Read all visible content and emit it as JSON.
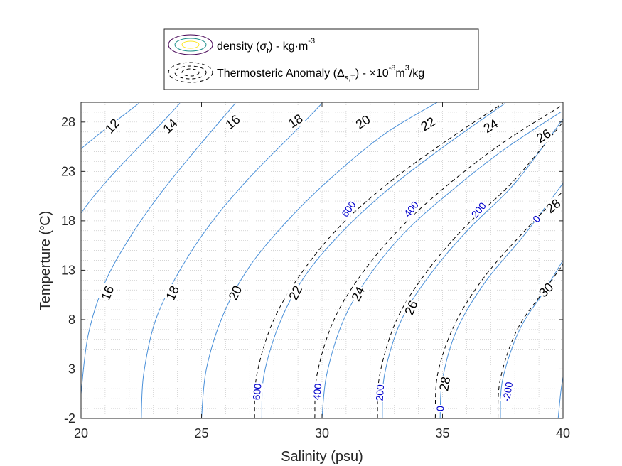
{
  "chart_data": {
    "type": "line",
    "title": "",
    "xlabel": "Salinity (psu)",
    "ylabel_main": "Temperture (",
    "ylabel_sup": "o",
    "ylabel_end": "C)",
    "xlim": [
      20,
      40
    ],
    "ylim": [
      -2,
      30
    ],
    "xticks": [
      "20",
      "25",
      "30",
      "35",
      "40"
    ],
    "yticks": [
      "-2",
      "3",
      "8",
      "13",
      "18",
      "23",
      "28"
    ],
    "grid": "on (minor dotted)",
    "legend_placement": "top, outside plot",
    "legend": {
      "density_label": "density (",
      "density_symbol": "σ",
      "density_sub": "t",
      "density_unit": ") - kg·m",
      "density_sup": "-3",
      "anomaly_label": "Thermosteric Anomaly (",
      "anomaly_symbol": "Δ",
      "anomaly_sub": "s,T",
      "anomaly_unit": ") - ×10",
      "anomaly_sup": "-8",
      "anomaly_unit_end": "m",
      "anomaly_sup2": "3",
      "anomaly_unit_tail": "/kg"
    },
    "colors": {
      "density_line": "#4a90d9",
      "anomaly_line": "#000000",
      "anomaly_label": "#0000cc",
      "grid": "#c8c8c8"
    },
    "density_contours": [
      {
        "level": 12,
        "label": "12",
        "points": [
          [
            20,
            25.3
          ],
          [
            20.7,
            26.7
          ],
          [
            21.5,
            28.2
          ],
          [
            22.4,
            29.9
          ]
        ]
      },
      {
        "level": 14,
        "label": "14",
        "points": [
          [
            20,
            18.8
          ],
          [
            20.6,
            20.7
          ],
          [
            21.5,
            23.2
          ],
          [
            22.6,
            26.0
          ],
          [
            23.5,
            28.3
          ],
          [
            24.1,
            29.9
          ]
        ]
      },
      {
        "level": 16,
        "label": "16",
        "points": [
          [
            20,
            0.5
          ],
          [
            20.3,
            6.5
          ],
          [
            21.0,
            11.8
          ],
          [
            22.1,
            16.6
          ],
          [
            23.4,
            21.1
          ],
          [
            24.9,
            25.6
          ],
          [
            26.4,
            29.9
          ]
        ]
      },
      {
        "level": 18,
        "label": "18",
        "points": [
          [
            22.5,
            -2
          ],
          [
            22.6,
            2.5
          ],
          [
            23.1,
            8.0
          ],
          [
            24.1,
            13.0
          ],
          [
            25.4,
            17.8
          ],
          [
            27.0,
            22.4
          ],
          [
            28.9,
            27.1
          ],
          [
            30.0,
            29.9
          ]
        ]
      },
      {
        "level": 20,
        "label": "20",
        "points": [
          [
            25.0,
            -2
          ],
          [
            25.2,
            3.0
          ],
          [
            25.9,
            8.5
          ],
          [
            27.0,
            13.4
          ],
          [
            28.6,
            18.1
          ],
          [
            30.4,
            22.4
          ],
          [
            32.6,
            26.8
          ],
          [
            35.0,
            30.3
          ]
        ]
      },
      {
        "level": 22,
        "label": "22",
        "points": [
          [
            27.5,
            -2
          ],
          [
            27.6,
            2.5
          ],
          [
            28.3,
            8.0
          ],
          [
            29.4,
            12.8
          ],
          [
            31.0,
            17.3
          ],
          [
            32.9,
            21.5
          ],
          [
            35.1,
            25.6
          ],
          [
            37.6,
            29.9
          ]
        ]
      },
      {
        "level": 24,
        "label": "24",
        "points": [
          [
            30.0,
            -2
          ],
          [
            30.2,
            2.5
          ],
          [
            30.9,
            8.0
          ],
          [
            32.0,
            12.6
          ],
          [
            33.5,
            17.0
          ],
          [
            35.4,
            21.1
          ],
          [
            37.6,
            25.3
          ],
          [
            39.9,
            29.0
          ]
        ]
      },
      {
        "level": 26,
        "label": "26",
        "points": [
          [
            32.5,
            -2
          ],
          [
            32.6,
            2.5
          ],
          [
            33.3,
            8.0
          ],
          [
            34.5,
            12.6
          ],
          [
            36.1,
            17.2
          ],
          [
            38.0,
            21.8
          ],
          [
            40.0,
            28.3
          ]
        ]
      },
      {
        "level": 28,
        "label": "28",
        "points": [
          [
            34.9,
            -2
          ],
          [
            35.0,
            2.0
          ],
          [
            35.6,
            7.0
          ],
          [
            36.8,
            11.9
          ],
          [
            38.4,
            16.6
          ],
          [
            40.0,
            21.8
          ]
        ]
      },
      {
        "level": 30,
        "label": "30",
        "points": [
          [
            37.4,
            -2
          ],
          [
            37.5,
            2.0
          ],
          [
            38.2,
            7.0
          ],
          [
            39.2,
            10.8
          ],
          [
            40.0,
            14.0
          ]
        ]
      },
      {
        "level": 32,
        "label": "",
        "points": [
          [
            39.8,
            -2
          ],
          [
            39.9,
            0.5
          ],
          [
            40.0,
            2.2
          ]
        ]
      }
    ],
    "anomaly_contours": [
      {
        "level": 600,
        "label": "600",
        "points": [
          [
            27.2,
            -2
          ],
          [
            27.3,
            2.5
          ],
          [
            28.0,
            8.0
          ],
          [
            29.2,
            12.9
          ],
          [
            30.8,
            17.6
          ],
          [
            32.8,
            21.9
          ],
          [
            35.1,
            26.0
          ],
          [
            37.5,
            29.9
          ]
        ]
      },
      {
        "level": 400,
        "label": "400",
        "points": [
          [
            29.7,
            -2
          ],
          [
            29.8,
            2.5
          ],
          [
            30.5,
            8.0
          ],
          [
            31.7,
            12.8
          ],
          [
            33.3,
            17.4
          ],
          [
            35.2,
            21.6
          ],
          [
            37.5,
            25.9
          ],
          [
            39.9,
            29.6
          ]
        ]
      },
      {
        "level": 200,
        "label": "200",
        "points": [
          [
            32.3,
            -2
          ],
          [
            32.4,
            2.5
          ],
          [
            33.1,
            8.0
          ],
          [
            34.3,
            12.7
          ],
          [
            35.9,
            17.3
          ],
          [
            37.9,
            21.9
          ],
          [
            40.0,
            28.0
          ]
        ]
      },
      {
        "level": 0,
        "label": "0",
        "points": [
          [
            34.7,
            -2
          ],
          [
            34.8,
            2.5
          ],
          [
            35.5,
            7.5
          ],
          [
            36.7,
            12.2
          ],
          [
            38.3,
            16.7
          ],
          [
            40.0,
            21.0
          ]
        ]
      },
      {
        "level": -200,
        "label": "-200",
        "points": [
          [
            37.3,
            -2
          ],
          [
            37.4,
            2.0
          ],
          [
            38.1,
            7.0
          ],
          [
            39.3,
            11.2
          ],
          [
            40.0,
            13.6
          ]
        ]
      }
    ],
    "density_labels": [
      {
        "text": "12",
        "x": 21.3,
        "y": 27.6,
        "angle": -48
      },
      {
        "text": "14",
        "x": 23.7,
        "y": 27.6,
        "angle": -45
      },
      {
        "text": "16",
        "x": 26.3,
        "y": 28.0,
        "angle": -38
      },
      {
        "text": "18",
        "x": 28.9,
        "y": 28.1,
        "angle": -33
      },
      {
        "text": "20",
        "x": 31.7,
        "y": 28.0,
        "angle": -33
      },
      {
        "text": "22",
        "x": 34.4,
        "y": 27.8,
        "angle": -32
      },
      {
        "text": "24",
        "x": 37.0,
        "y": 27.6,
        "angle": -32
      },
      {
        "text": "26",
        "x": 39.2,
        "y": 26.6,
        "angle": -32
      },
      {
        "text": "28",
        "x": 39.6,
        "y": 19.5,
        "angle": -38
      },
      {
        "text": "16",
        "x": 21.1,
        "y": 10.7,
        "angle": -68
      },
      {
        "text": "18",
        "x": 23.8,
        "y": 10.7,
        "angle": -66
      },
      {
        "text": "20",
        "x": 26.4,
        "y": 10.7,
        "angle": -64
      },
      {
        "text": "22",
        "x": 28.9,
        "y": 10.7,
        "angle": -64
      },
      {
        "text": "24",
        "x": 31.5,
        "y": 10.6,
        "angle": -64
      },
      {
        "text": "26",
        "x": 33.7,
        "y": 9.2,
        "angle": -66
      },
      {
        "text": "30",
        "x": 39.3,
        "y": 11.0,
        "angle": -45
      },
      {
        "text": "28",
        "x": 35.1,
        "y": 1.5,
        "angle": -80
      }
    ],
    "anomaly_labels": [
      {
        "text": "600",
        "x": 31.1,
        "y": 19.2,
        "angle": -55
      },
      {
        "text": "400",
        "x": 33.7,
        "y": 19.2,
        "angle": -52
      },
      {
        "text": "200",
        "x": 36.5,
        "y": 19.1,
        "angle": -50
      },
      {
        "text": "0",
        "x": 38.9,
        "y": 18.2,
        "angle": -50
      },
      {
        "text": "600",
        "x": 27.3,
        "y": 0.7,
        "angle": -84
      },
      {
        "text": "400",
        "x": 29.8,
        "y": 0.7,
        "angle": -84
      },
      {
        "text": "200",
        "x": 32.4,
        "y": 0.6,
        "angle": -86
      },
      {
        "text": "0",
        "x": 34.9,
        "y": -1.0,
        "angle": -88
      },
      {
        "text": "-200",
        "x": 37.7,
        "y": 0.7,
        "angle": -80
      }
    ]
  }
}
